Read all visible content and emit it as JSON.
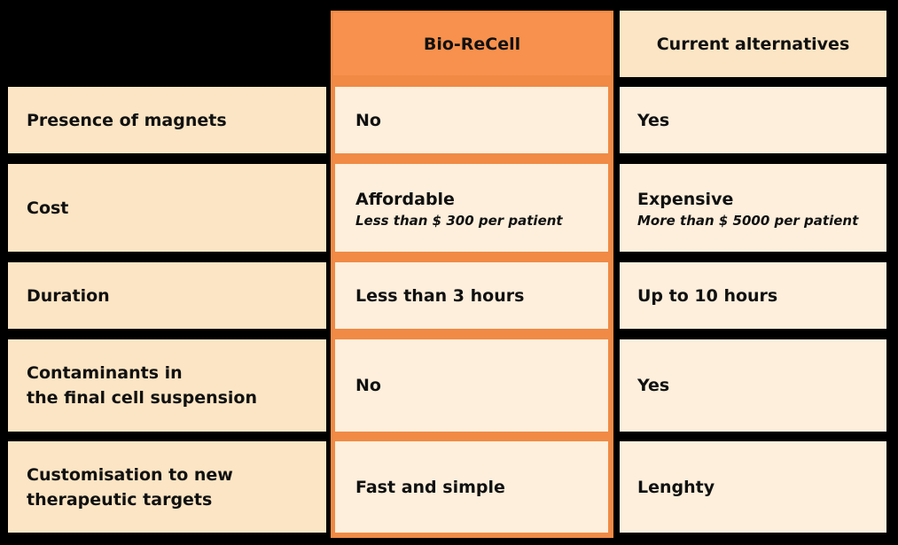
{
  "colors": {
    "background": "#000000",
    "accent_orange": "#F7914D",
    "accent_border": "#F08A45",
    "label_fill": "#FCE5C4",
    "cell_fill": "#FDEFDC"
  },
  "header": {
    "bio_recell": "Bio-ReCell",
    "current_alternatives": "Current alternatives"
  },
  "rows": [
    {
      "label": "Presence of magnets",
      "bio": {
        "main": "No"
      },
      "alt": {
        "main": "Yes"
      }
    },
    {
      "label": "Cost",
      "bio": {
        "main": "Affordable",
        "sub": "Less than $ 300 per patient"
      },
      "alt": {
        "main": "Expensive",
        "sub": "More than $ 5000 per patient"
      }
    },
    {
      "label": "Duration",
      "bio": {
        "main": "Less than 3 hours"
      },
      "alt": {
        "main": "Up to 10 hours"
      }
    },
    {
      "label_line1": "Contaminants in",
      "label_line2": "the final cell suspension",
      "bio": {
        "main": "No"
      },
      "alt": {
        "main": "Yes"
      }
    },
    {
      "label_line1": "Customisation to new",
      "label_line2": "therapeutic targets",
      "bio": {
        "main": "Fast and simple"
      },
      "alt": {
        "main": "Lenghty"
      }
    }
  ]
}
